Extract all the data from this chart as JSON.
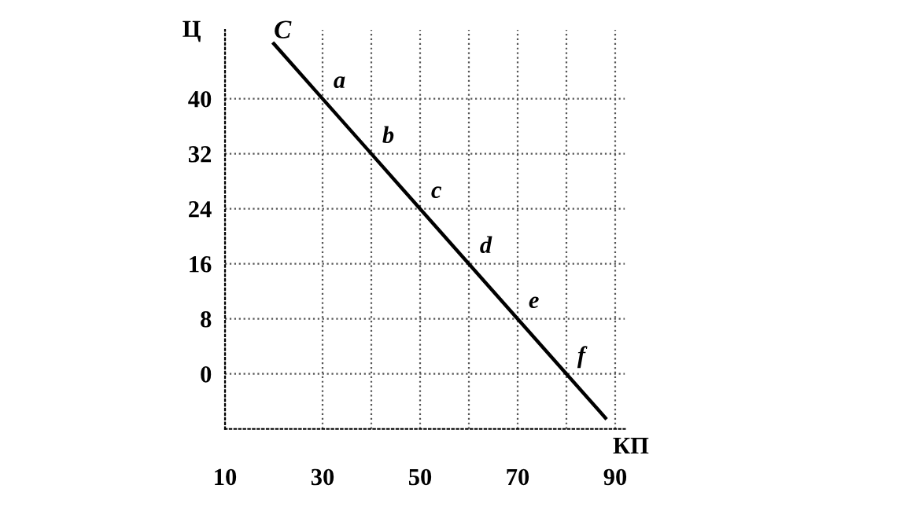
{
  "chart_data": {
    "type": "line",
    "xlabel": "КП",
    "ylabel": "Ц",
    "series": [
      {
        "name": "C",
        "color": "#000000",
        "x": [
          20,
          30,
          40,
          50,
          60,
          70,
          80,
          88
        ],
        "values": [
          48,
          40,
          32,
          24,
          16,
          8,
          0,
          -6.4
        ]
      }
    ],
    "xlim": [
      10,
      92
    ],
    "ylim": [
      -8,
      50
    ],
    "xticks": [
      10,
      30,
      {
        "value": 40,
        "label": null
      },
      50,
      {
        "value": 60,
        "label": null
      },
      70,
      {
        "value": 80,
        "label": null
      },
      90
    ],
    "yticks": [
      0,
      8,
      16,
      24,
      32,
      40
    ],
    "grid": true,
    "marker": "none",
    "line_style": "solid",
    "annotations": [
      {
        "text": "a",
        "x": 30,
        "y": 40
      },
      {
        "text": "b",
        "x": 40,
        "y": 32
      },
      {
        "text": "c",
        "x": 50,
        "y": 24
      },
      {
        "text": "d",
        "x": 60,
        "y": 16
      },
      {
        "text": "e",
        "x": 70,
        "y": 8
      },
      {
        "text": "f",
        "x": 80,
        "y": 0
      }
    ]
  }
}
